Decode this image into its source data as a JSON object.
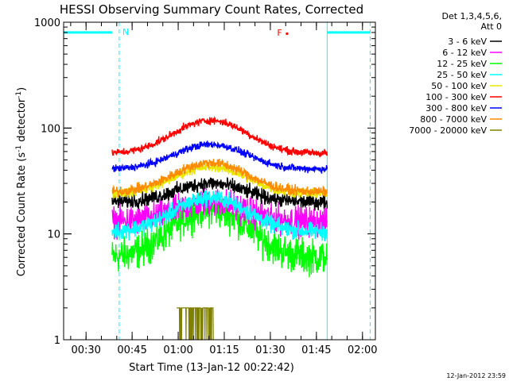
{
  "chart_data": {
    "type": "line",
    "title": "HESSI Observing Summary Count Rates, Corrected",
    "xlabel": "Start Time (13-Jan-12 00:22:42)",
    "ylabel_parts": [
      "Corrected Count Rate (s",
      "-1",
      " detector",
      "-1",
      ")"
    ],
    "yscale": "log",
    "ylim": [
      1,
      1000
    ],
    "xlim_min": [
      22.7,
      124.2
    ],
    "yticks": [
      {
        "v": 1,
        "label": "1"
      },
      {
        "v": 10,
        "label": "10"
      },
      {
        "v": 100,
        "label": "100"
      },
      {
        "v": 1000,
        "label": "1000"
      }
    ],
    "xticks": [
      {
        "m": 30,
        "label": "00:30"
      },
      {
        "m": 45,
        "label": "00:45"
      },
      {
        "m": 60,
        "label": "01:00"
      },
      {
        "m": 75,
        "label": "01:15"
      },
      {
        "m": 90,
        "label": "01:30"
      },
      {
        "m": 105,
        "label": "01:45"
      },
      {
        "m": 120,
        "label": "02:00"
      }
    ],
    "legend": {
      "title_lines": [
        "Det 1,3,4,5,6,",
        "Att 0"
      ],
      "placement": "outside-right"
    },
    "series": [
      {
        "name": "3 - 6 keV",
        "color": "#000000",
        "base": 20,
        "peak": 30,
        "noise": 0.06
      },
      {
        "name": "6 - 12 keV",
        "color": "#ff00ff",
        "base": 13,
        "peak": 20,
        "noise": 0.12
      },
      {
        "name": "12 - 25 keV",
        "color": "#00ff00",
        "base": 6,
        "peak": 17,
        "noise": 0.14
      },
      {
        "name": "25 - 50 keV",
        "color": "#00ffff",
        "base": 10.5,
        "peak": 22,
        "noise": 0.07
      },
      {
        "name": "50 - 100 keV",
        "color": "#e8e800",
        "base": 24,
        "peak": 43,
        "noise": 0.04
      },
      {
        "name": "100 - 300 keV",
        "color": "#ff0000",
        "base": 58,
        "peak": 118,
        "noise": 0.03
      },
      {
        "name": "300 - 800 keV",
        "color": "#0000ff",
        "base": 41,
        "peak": 70,
        "noise": 0.03
      },
      {
        "name": "800 - 7000 keV",
        "color": "#ff8c00",
        "base": 25,
        "peak": 47,
        "noise": 0.04
      },
      {
        "name": "7000 - 20000 keV",
        "color": "#808000",
        "base": 1,
        "peak": 1,
        "noise": 0
      }
    ],
    "data_window_min": [
      38.5,
      108.5
    ],
    "burst_7000": {
      "range_min": [
        59.5,
        71.5
      ],
      "level": 2
    },
    "annotations": [
      {
        "label": "N",
        "color": "#00ffff",
        "m": 40.8
      },
      {
        "label": "F",
        "color": "#ff0000",
        "m": 93.5,
        "y": 800
      }
    ],
    "night_segments": [
      {
        "from_m": 22.7,
        "to_m": 38.5,
        "y": 800
      },
      {
        "from_m": 108.5,
        "to_m": 122.5,
        "y": 800
      }
    ],
    "vertical_markers": [
      {
        "m": 40.8,
        "style": "dashed"
      },
      {
        "m": 108.5,
        "style": "solid"
      },
      {
        "m": 122.5,
        "style": "dashed"
      }
    ]
  },
  "footer": {
    "timestamp": "12-Jan-2012 23:59"
  }
}
